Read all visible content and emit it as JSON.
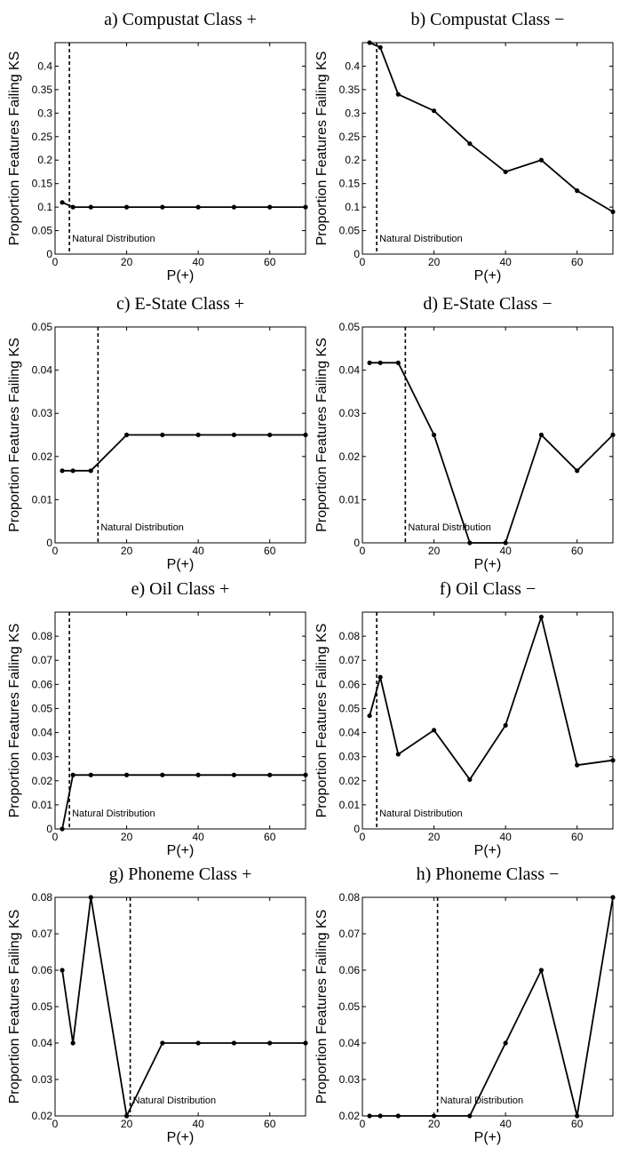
{
  "chart_data": [
    {
      "type": "line",
      "title": "a) Compustat Class +",
      "xlabel": "P(+)",
      "ylabel": "Proportion Features Failing KS",
      "xlim": [
        0,
        70
      ],
      "ylim": [
        0,
        0.45
      ],
      "xticks": [
        0,
        20,
        40,
        60
      ],
      "yticks": [
        0,
        0.05,
        0.1,
        0.15,
        0.2,
        0.25,
        0.3,
        0.35,
        0.4
      ],
      "ytick_labels": [
        "0",
        "0.05",
        "0.1",
        "0.15",
        "0.2",
        "0.25",
        "0.3",
        "0.35",
        "0.4"
      ],
      "x": [
        2,
        5,
        10,
        20,
        30,
        40,
        50,
        60,
        70
      ],
      "y": [
        0.11,
        0.1,
        0.1,
        0.1,
        0.1,
        0.1,
        0.1,
        0.1,
        0.1
      ],
      "natural_distribution_x": 4,
      "annotation": "Natural Distribution"
    },
    {
      "type": "line",
      "title": "b) Compustat Class −",
      "xlabel": "P(+)",
      "ylabel": "Proportion Features Failing KS",
      "xlim": [
        0,
        70
      ],
      "ylim": [
        0,
        0.45
      ],
      "xticks": [
        0,
        20,
        40,
        60
      ],
      "yticks": [
        0,
        0.05,
        0.1,
        0.15,
        0.2,
        0.25,
        0.3,
        0.35,
        0.4
      ],
      "ytick_labels": [
        "0",
        "0.05",
        "0.1",
        "0.15",
        "0.2",
        "0.25",
        "0.3",
        "0.35",
        "0.4"
      ],
      "x": [
        2,
        5,
        10,
        20,
        30,
        40,
        50,
        60,
        70
      ],
      "y": [
        0.45,
        0.44,
        0.34,
        0.305,
        0.235,
        0.175,
        0.2,
        0.135,
        0.09
      ],
      "natural_distribution_x": 4,
      "annotation": "Natural Distribution"
    },
    {
      "type": "line",
      "title": "c) E-State Class +",
      "xlabel": "P(+)",
      "ylabel": "Proportion Features Failing KS",
      "xlim": [
        0,
        70
      ],
      "ylim": [
        0,
        0.05
      ],
      "xticks": [
        0,
        20,
        40,
        60
      ],
      "yticks": [
        0,
        0.01,
        0.02,
        0.03,
        0.04,
        0.05
      ],
      "ytick_labels": [
        "0",
        "0.01",
        "0.02",
        "0.03",
        "0.04",
        "0.05"
      ],
      "x": [
        2,
        5,
        10,
        20,
        30,
        40,
        50,
        60,
        70
      ],
      "y": [
        0.0167,
        0.0167,
        0.0167,
        0.025,
        0.025,
        0.025,
        0.025,
        0.025,
        0.025
      ],
      "natural_distribution_x": 12,
      "annotation": "Natural Distribution"
    },
    {
      "type": "line",
      "title": "d) E-State Class −",
      "xlabel": "P(+)",
      "ylabel": "Proportion Features Failing KS",
      "xlim": [
        0,
        70
      ],
      "ylim": [
        0,
        0.05
      ],
      "xticks": [
        0,
        20,
        40,
        60
      ],
      "yticks": [
        0,
        0.01,
        0.02,
        0.03,
        0.04,
        0.05
      ],
      "ytick_labels": [
        "0",
        "0.01",
        "0.02",
        "0.03",
        "0.04",
        "0.05"
      ],
      "x": [
        2,
        5,
        10,
        20,
        30,
        40,
        50,
        60,
        70
      ],
      "y": [
        0.0417,
        0.0417,
        0.0417,
        0.025,
        0,
        0,
        0.025,
        0.0167,
        0.025
      ],
      "natural_distribution_x": 12,
      "annotation": "Natural Distribution"
    },
    {
      "type": "line",
      "title": "e) Oil Class +",
      "xlabel": "P(+)",
      "ylabel": "Proportion Features Failing KS",
      "xlim": [
        0,
        70
      ],
      "ylim": [
        0,
        0.09
      ],
      "xticks": [
        0,
        20,
        40,
        60
      ],
      "yticks": [
        0,
        0.01,
        0.02,
        0.03,
        0.04,
        0.05,
        0.06,
        0.07,
        0.08
      ],
      "ytick_labels": [
        "0",
        "0.01",
        "0.02",
        "0.03",
        "0.04",
        "0.05",
        "0.06",
        "0.07",
        "0.08"
      ],
      "x": [
        2,
        5,
        10,
        20,
        30,
        40,
        50,
        60,
        70
      ],
      "y": [
        0,
        0.0224,
        0.0224,
        0.0224,
        0.0224,
        0.0224,
        0.0224,
        0.0224,
        0.0224
      ],
      "natural_distribution_x": 4,
      "annotation": "Natural Distribution"
    },
    {
      "type": "line",
      "title": "f) Oil Class −",
      "xlabel": "P(+)",
      "ylabel": "Proportion Features Failing KS",
      "xlim": [
        0,
        70
      ],
      "ylim": [
        0,
        0.09
      ],
      "xticks": [
        0,
        20,
        40,
        60
      ],
      "yticks": [
        0,
        0.01,
        0.02,
        0.03,
        0.04,
        0.05,
        0.06,
        0.07,
        0.08
      ],
      "ytick_labels": [
        "0",
        "0.01",
        "0.02",
        "0.03",
        "0.04",
        "0.05",
        "0.06",
        "0.07",
        "0.08"
      ],
      "x": [
        2,
        5,
        10,
        20,
        30,
        40,
        50,
        60,
        70
      ],
      "y": [
        0.047,
        0.063,
        0.031,
        0.041,
        0.0205,
        0.043,
        0.088,
        0.0265,
        0.0285
      ],
      "natural_distribution_x": 4,
      "annotation": "Natural Distribution"
    },
    {
      "type": "line",
      "title": "g) Phoneme Class +",
      "xlabel": "P(+)",
      "ylabel": "Proportion Features Failing KS",
      "xlim": [
        0,
        70
      ],
      "ylim": [
        0.02,
        0.08
      ],
      "xticks": [
        0,
        20,
        40,
        60
      ],
      "yticks": [
        0.02,
        0.03,
        0.04,
        0.05,
        0.06,
        0.07,
        0.08
      ],
      "ytick_labels": [
        "0.02",
        "0.03",
        "0.04",
        "0.05",
        "0.06",
        "0.07",
        "0.08"
      ],
      "x": [
        2,
        5,
        10,
        20,
        30,
        40,
        50,
        60,
        70
      ],
      "y": [
        0.06,
        0.04,
        0.08,
        0.02,
        0.04,
        0.04,
        0.04,
        0.04,
        0.04
      ],
      "natural_distribution_x": 21,
      "annotation": "Natural Distribution"
    },
    {
      "type": "line",
      "title": "h) Phoneme Class −",
      "xlabel": "P(+)",
      "ylabel": "Proportion Features Failing KS",
      "xlim": [
        0,
        70
      ],
      "ylim": [
        0.02,
        0.08
      ],
      "xticks": [
        0,
        20,
        40,
        60
      ],
      "yticks": [
        0.02,
        0.03,
        0.04,
        0.05,
        0.06,
        0.07,
        0.08
      ],
      "ytick_labels": [
        "0.02",
        "0.03",
        "0.04",
        "0.05",
        "0.06",
        "0.07",
        "0.08"
      ],
      "x": [
        2,
        5,
        10,
        20,
        30,
        40,
        50,
        60,
        70
      ],
      "y": [
        0.02,
        0.02,
        0.02,
        0.02,
        0.02,
        0.04,
        0.06,
        0.02,
        0.08
      ],
      "natural_distribution_x": 21,
      "annotation": "Natural Distribution"
    }
  ]
}
